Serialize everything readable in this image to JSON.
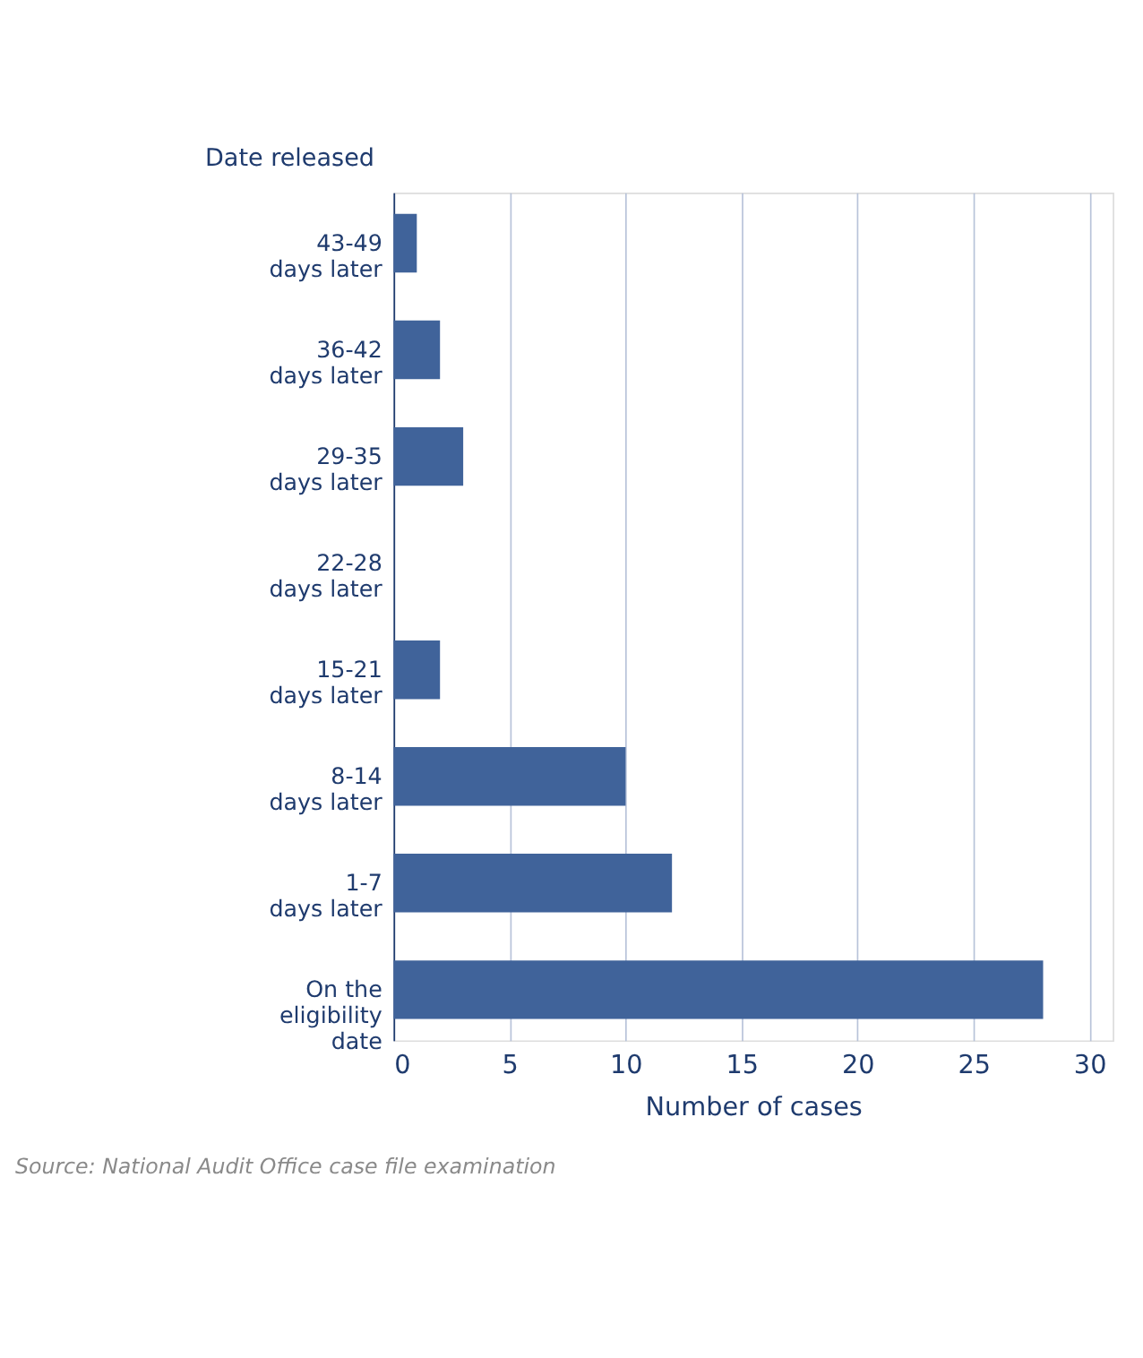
{
  "chart_data": {
    "type": "bar",
    "orientation": "horizontal",
    "ylabel": "Date released",
    "xlabel": "Number of cases",
    "categories": [
      "43-49\ndays later",
      "36-42\ndays later",
      "29-35\ndays later",
      "22-28\ndays later",
      "15-21\ndays later",
      "8-14\ndays later",
      "1-7\ndays later",
      "On the\neligibility\ndate"
    ],
    "values": [
      1,
      2,
      3,
      0,
      2,
      10,
      12,
      28
    ],
    "color": "#40639a",
    "xlim": [
      0,
      31
    ],
    "xticks": [
      0,
      5,
      10,
      15,
      20,
      25,
      30
    ],
    "grid": "x",
    "annotations": [
      "Source: National Audit Office case file examination"
    ]
  }
}
